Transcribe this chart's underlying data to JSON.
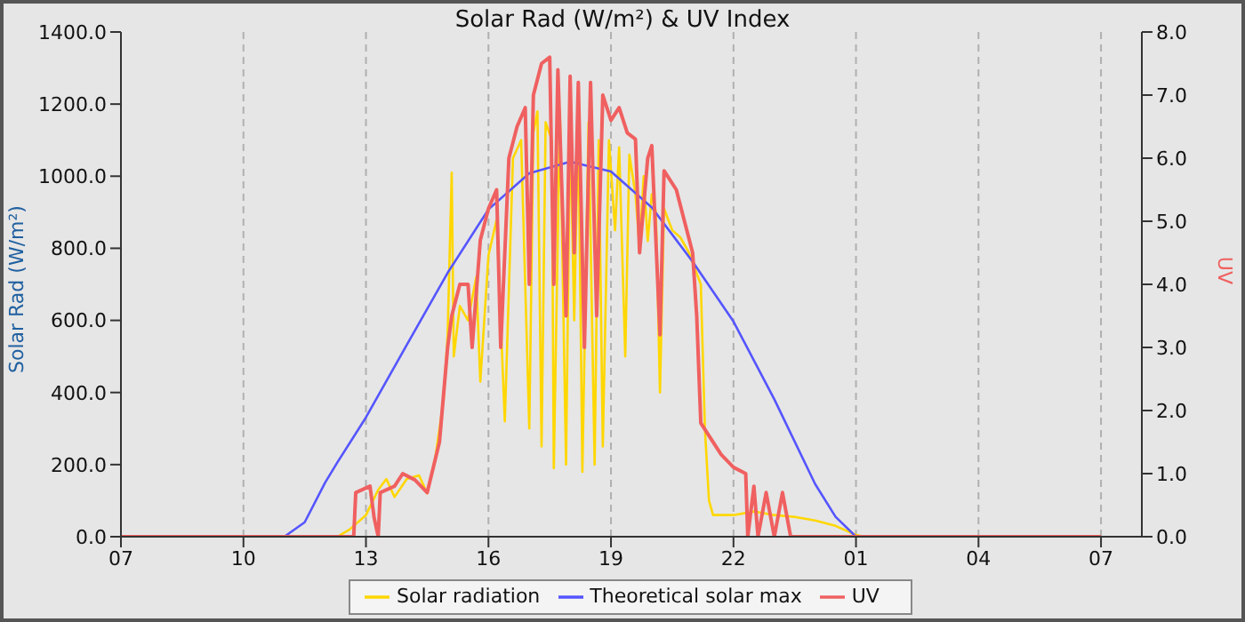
{
  "chart_data": {
    "type": "line",
    "title": "Solar Rad (W/m²) &  UV Index",
    "ylabel": "Solar Rad (W/m²)",
    "y2label": "UV",
    "xlim": [
      "--01-01T07:00",
      "--01-02T08:00"
    ],
    "xticks": [
      {
        "value": "--01-01T07:00",
        "label": "07"
      },
      {
        "value": "--01-01T10:00",
        "label": "10"
      },
      {
        "value": "--01-01T13:00",
        "label": "13"
      },
      {
        "value": "--01-01T16:00",
        "label": "16"
      },
      {
        "value": "--01-01T19:00",
        "label": "19"
      },
      {
        "value": "--01-01T22:00",
        "label": "22"
      },
      {
        "value": "--01-02T01:00",
        "label": "01"
      },
      {
        "value": "--01-02T04:00",
        "label": "04"
      },
      {
        "value": "--01-02T07:00",
        "label": "07"
      }
    ],
    "ylim": [
      0,
      1400
    ],
    "yticks": [
      {
        "value": 0,
        "label": "0.0"
      },
      {
        "value": 200,
        "label": "200.0"
      },
      {
        "value": 400,
        "label": "400.0"
      },
      {
        "value": 600,
        "label": "600.0"
      },
      {
        "value": 800,
        "label": "800.0"
      },
      {
        "value": 1000,
        "label": "1000.0"
      },
      {
        "value": 1200,
        "label": "1200.0"
      },
      {
        "value": 1400,
        "label": "1400.0"
      }
    ],
    "y2lim": [
      0,
      8
    ],
    "y2ticks": [
      {
        "value": 0,
        "label": "0.0"
      },
      {
        "value": 1,
        "label": "1.0"
      },
      {
        "value": 2,
        "label": "2.0"
      },
      {
        "value": 3,
        "label": "3.0"
      },
      {
        "value": 4,
        "label": "4.0"
      },
      {
        "value": 5,
        "label": "5.0"
      },
      {
        "value": 6,
        "label": "6.0"
      },
      {
        "value": 7,
        "label": "7.0"
      },
      {
        "value": 8,
        "label": "8.0"
      }
    ],
    "grid": true,
    "legend": "bottom",
    "marker": "none",
    "line_style": "solid",
    "series": [
      {
        "name": "Solar radiation",
        "color": "#ffd700",
        "x": [
          "--01-01T07:00",
          "--01-01T12:18",
          "--01-01T12:36",
          "--01-01T13:00",
          "--01-01T13:18",
          "--01-01T13:30",
          "--01-01T13:42",
          "--01-01T14:00",
          "--01-01T14:18",
          "--01-01T14:30",
          "--01-01T14:42",
          "--01-01T14:54",
          "--01-01T15:00",
          "--01-01T15:06",
          "--01-01T15:09",
          "--01-01T15:18",
          "--01-01T15:30",
          "--01-01T15:42",
          "--01-01T15:48",
          "--01-01T16:00",
          "--01-01T16:12",
          "--01-01T16:24",
          "--01-01T16:36",
          "--01-01T16:48",
          "--01-01T17:00",
          "--01-01T17:06",
          "--01-01T17:12",
          "--01-01T17:18",
          "--01-01T17:24",
          "--01-01T17:33",
          "--01-01T17:36",
          "--01-01T17:45",
          "--01-01T17:54",
          "--01-01T18:00",
          "--01-01T18:06",
          "--01-01T18:12",
          "--01-01T18:18",
          "--01-01T18:27",
          "--01-01T18:36",
          "--01-01T18:42",
          "--01-01T18:48",
          "--01-01T18:57",
          "--01-01T19:06",
          "--01-01T19:12",
          "--01-01T19:21",
          "--01-01T19:27",
          "--01-01T19:36",
          "--01-01T19:42",
          "--01-01T19:48",
          "--01-01T19:54",
          "--01-01T20:00",
          "--01-01T20:06",
          "--01-01T20:12",
          "--01-01T20:18",
          "--01-01T20:30",
          "--01-01T20:42",
          "--01-01T20:54",
          "--01-01T21:00",
          "--01-01T21:12",
          "--01-01T21:18",
          "--01-01T21:24",
          "--01-01T21:30",
          "--01-01T22:00",
          "--01-01T22:30",
          "--01-01T23:00",
          "--01-01T23:30",
          "--01-02T00:00",
          "--01-02T00:30",
          "--01-02T01:00",
          "--01-02T01:12",
          "--01-02T07:00"
        ],
        "values": [
          0,
          0,
          20,
          60,
          130,
          160,
          110,
          160,
          170,
          120,
          220,
          380,
          560,
          1010,
          500,
          640,
          600,
          720,
          430,
          780,
          880,
          320,
          1050,
          1100,
          300,
          1120,
          1180,
          250,
          1150,
          1100,
          190,
          1180,
          200,
          1150,
          600,
          1170,
          180,
          1150,
          200,
          1100,
          250,
          1100,
          850,
          1080,
          500,
          1060,
          950,
          800,
          1000,
          820,
          950,
          900,
          400,
          910,
          850,
          830,
          790,
          760,
          700,
          300,
          100,
          60,
          60,
          70,
          60,
          55,
          45,
          30,
          5,
          0,
          0
        ]
      },
      {
        "name": "Theoretical solar max",
        "color": "#5555ff",
        "x": [
          "--01-01T07:00",
          "--01-01T11:00",
          "--01-01T11:30",
          "--01-01T12:00",
          "--01-01T12:18",
          "--01-01T13:00",
          "--01-01T14:00",
          "--01-01T15:00",
          "--01-01T16:00",
          "--01-01T17:00",
          "--01-01T18:00",
          "--01-01T19:00",
          "--01-01T20:00",
          "--01-01T21:00",
          "--01-01T22:00",
          "--01-01T23:00",
          "--01-02T00:00",
          "--01-02T00:30",
          "--01-02T01:00",
          "--01-02T07:00"
        ],
        "values": [
          0,
          0,
          40,
          150,
          206,
          331,
          532,
          732,
          908,
          1008,
          1040,
          1013,
          913,
          763,
          597,
          381,
          146,
          55,
          0,
          0
        ]
      },
      {
        "name": "UV",
        "color": "#f06060",
        "axis": "y2",
        "x": [
          "--01-01T07:00",
          "--01-01T12:42",
          "--01-01T12:45",
          "--01-01T13:06",
          "--01-01T13:12",
          "--01-01T13:18",
          "--01-01T13:21",
          "--01-01T13:42",
          "--01-01T13:54",
          "--01-01T14:12",
          "--01-01T14:30",
          "--01-01T14:48",
          "--01-01T15:00",
          "--01-01T15:06",
          "--01-01T15:18",
          "--01-01T15:30",
          "--01-01T15:36",
          "--01-01T15:48",
          "--01-01T16:00",
          "--01-01T16:12",
          "--01-01T16:18",
          "--01-01T16:30",
          "--01-01T16:42",
          "--01-01T16:54",
          "--01-01T17:00",
          "--01-01T17:06",
          "--01-01T17:18",
          "--01-01T17:30",
          "--01-01T17:36",
          "--01-01T17:42",
          "--01-01T17:54",
          "--01-01T18:00",
          "--01-01T18:06",
          "--01-01T18:12",
          "--01-01T18:21",
          "--01-01T18:30",
          "--01-01T18:39",
          "--01-01T18:48",
          "--01-01T19:00",
          "--01-01T19:12",
          "--01-01T19:24",
          "--01-01T19:36",
          "--01-01T19:42",
          "--01-01T19:54",
          "--01-01T20:00",
          "--01-01T20:12",
          "--01-01T20:18",
          "--01-01T20:36",
          "--01-01T20:48",
          "--01-01T21:00",
          "--01-01T21:06",
          "--01-01T21:12",
          "--01-01T21:24",
          "--01-01T21:42",
          "--01-01T22:00",
          "--01-01T22:18",
          "--01-01T22:21",
          "--01-01T22:30",
          "--01-01T22:36",
          "--01-01T22:48",
          "--01-01T23:00",
          "--01-01T23:12",
          "--01-01T23:24",
          "--01-02T07:00"
        ],
        "values": [
          0,
          0,
          0.7,
          0.8,
          0.3,
          0,
          0.7,
          0.8,
          1.0,
          0.9,
          0.7,
          1.5,
          3.0,
          3.5,
          4.0,
          4.0,
          3.0,
          4.7,
          5.2,
          5.5,
          3.0,
          6.0,
          6.5,
          6.8,
          4.0,
          7.0,
          7.5,
          7.6,
          4.0,
          7.4,
          3.5,
          7.3,
          4.5,
          7.2,
          3.0,
          7.2,
          3.5,
          7.0,
          6.6,
          6.8,
          6.4,
          6.3,
          4.5,
          6.0,
          6.2,
          3.2,
          5.8,
          5.5,
          5.0,
          4.5,
          3.5,
          1.8,
          1.6,
          1.3,
          1.1,
          1.0,
          0,
          0.8,
          0,
          0.7,
          0,
          0.7,
          0,
          0
        ]
      }
    ]
  }
}
